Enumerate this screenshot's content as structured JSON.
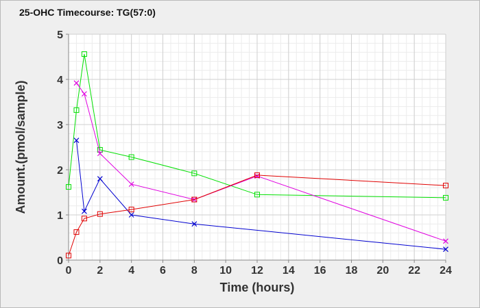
{
  "title": "25-OHC Timecourse: TG(57:0)",
  "chart_data": {
    "type": "line",
    "title": "25-OHC Timecourse: TG(57:0)",
    "xlabel": "Time (hours)",
    "ylabel": "Amount.(pmol/sample)",
    "xlim": [
      0,
      24
    ],
    "ylim": [
      0,
      5
    ],
    "xticks": [
      0,
      2,
      4,
      6,
      8,
      10,
      12,
      14,
      16,
      18,
      20,
      22,
      24
    ],
    "yticks": [
      0,
      1,
      2,
      3,
      4,
      5
    ],
    "grid": true,
    "series": [
      {
        "color": "#00e000",
        "marker": "square",
        "x": [
          0,
          0.5,
          1,
          2,
          4,
          8,
          12,
          24
        ],
        "y": [
          1.62,
          3.32,
          4.56,
          2.44,
          2.28,
          1.92,
          1.45,
          1.38
        ]
      },
      {
        "color": "#e000e0",
        "marker": "x",
        "x": [
          0.5,
          1,
          2,
          4,
          8,
          12,
          24
        ],
        "y": [
          3.92,
          3.68,
          2.36,
          1.68,
          1.34,
          1.86,
          0.42
        ]
      },
      {
        "color": "#0000d0",
        "marker": "x",
        "x": [
          0.5,
          1,
          2,
          4,
          8,
          24
        ],
        "y": [
          2.65,
          1.08,
          1.8,
          1.0,
          0.8,
          0.24
        ]
      },
      {
        "color": "#e00000",
        "marker": "square",
        "x": [
          0,
          0.5,
          1,
          2,
          4,
          8,
          12,
          24
        ],
        "y": [
          0.1,
          0.62,
          0.92,
          1.02,
          1.12,
          1.34,
          1.88,
          1.65
        ]
      }
    ]
  }
}
